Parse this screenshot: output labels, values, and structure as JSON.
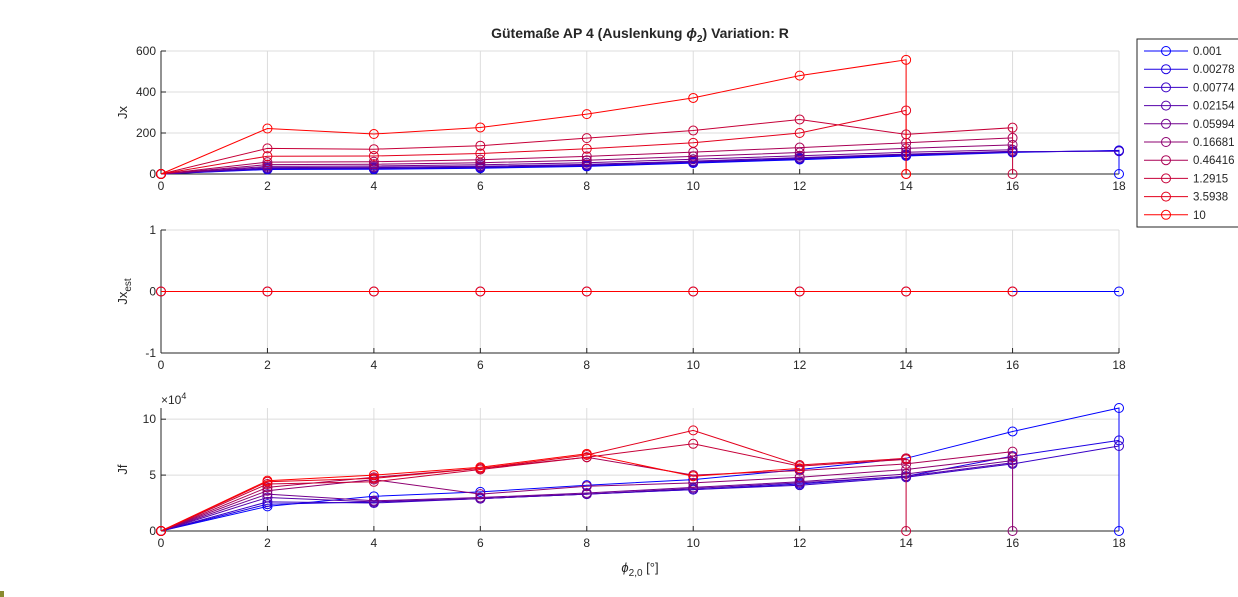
{
  "figure_title": "Gütemaße AP 4 (Auslenkung ϕ2)  Variation: R",
  "title_parts": {
    "pre": "Gütemaße AP 4 (Auslenkung ",
    "sym": "ϕ",
    "sub": "2",
    "post": ")  Variation: R"
  },
  "xlabel_parts": {
    "sym": "ϕ",
    "sub": "2,0",
    "post": " [°]"
  },
  "legend_entries": [
    "0.001",
    "0.00278",
    "0.00774",
    "0.02154",
    "0.05994",
    "0.16681",
    "0.46416",
    "1.2915",
    "3.5938",
    "10"
  ],
  "series_colors": [
    "#0000ff",
    "#1c00e3",
    "#3800c6",
    "#5500aa",
    "#71008e",
    "#8e0071",
    "#aa0055",
    "#c60038",
    "#e3001c",
    "#ff0000"
  ],
  "marker": "open circle",
  "chart_data": [
    {
      "type": "line",
      "ylabel": "Jx",
      "xlim": [
        0,
        18
      ],
      "ylim": [
        0,
        600
      ],
      "yticks": [
        0,
        200,
        400,
        600
      ],
      "xticks": [
        0,
        2,
        4,
        6,
        8,
        10,
        12,
        14,
        16,
        18
      ],
      "grid": true,
      "legend": "outside top-right",
      "series": [
        {
          "name": "0.001",
          "x": [
            0,
            2,
            4,
            6,
            8,
            10,
            12,
            14,
            16,
            18,
            18
          ],
          "y": [
            0,
            22,
            23,
            28,
            37,
            53,
            70,
            88,
            105,
            115,
            0
          ]
        },
        {
          "name": "0.00278",
          "x": [
            0,
            2,
            4,
            6,
            8,
            10,
            12,
            14,
            16,
            18
          ],
          "y": [
            0,
            24,
            26,
            31,
            40,
            56,
            73,
            91,
            107,
            113
          ]
        },
        {
          "name": "0.00774",
          "x": [
            0,
            2,
            4,
            6,
            8,
            10,
            12,
            14,
            16,
            18
          ],
          "y": [
            0,
            27,
            29,
            34,
            43,
            59,
            76,
            94,
            109,
            111
          ]
        },
        {
          "name": "0.02154",
          "x": [
            0,
            2,
            4,
            6,
            8,
            10,
            12,
            14,
            16
          ],
          "y": [
            0,
            31,
            33,
            38,
            47,
            63,
            80,
            97,
            111
          ]
        },
        {
          "name": "0.05994",
          "x": [
            0,
            2,
            4,
            6,
            8,
            10,
            12,
            14,
            16
          ],
          "y": [
            0,
            37,
            39,
            45,
            55,
            72,
            89,
            106,
            118
          ]
        },
        {
          "name": "0.16681",
          "x": [
            0,
            2,
            4,
            6,
            8,
            10,
            12,
            14,
            16
          ],
          "y": [
            0,
            46,
            48,
            55,
            67,
            86,
            105,
            125,
            142
          ]
        },
        {
          "name": "0.46416",
          "x": [
            0,
            2,
            4,
            6,
            8,
            10,
            12,
            14,
            16
          ],
          "y": [
            0,
            58,
            60,
            70,
            86,
            107,
            129,
            152,
            176
          ]
        },
        {
          "name": "1.2915",
          "x": [
            0,
            2,
            4,
            6,
            8,
            10,
            12,
            14,
            16,
            16
          ],
          "y": [
            0,
            125,
            121,
            138,
            175,
            212,
            266,
            193,
            226,
            0
          ]
        },
        {
          "name": "3.5938",
          "x": [
            0,
            2,
            4,
            6,
            8,
            10,
            12,
            14,
            14
          ],
          "y": [
            0,
            87,
            88,
            100,
            123,
            152,
            200,
            310,
            0
          ]
        },
        {
          "name": "10",
          "x": [
            0,
            2,
            4,
            6,
            8,
            10,
            12,
            14,
            14
          ],
          "y": [
            0,
            222,
            195,
            227,
            292,
            371,
            480,
            557,
            0
          ]
        }
      ]
    },
    {
      "type": "line",
      "ylabel": "Jx",
      "ylabel_sub": "est",
      "xlim": [
        0,
        18
      ],
      "ylim": [
        -1,
        1
      ],
      "yticks": [
        -1,
        0,
        1
      ],
      "xticks": [
        0,
        2,
        4,
        6,
        8,
        10,
        12,
        14,
        16,
        18
      ],
      "grid": true,
      "series": [
        {
          "name": "0.001",
          "x": [
            0,
            2,
            4,
            6,
            8,
            10,
            12,
            14,
            16,
            18
          ],
          "y": [
            0,
            0,
            0,
            0,
            0,
            0,
            0,
            0,
            0,
            0
          ]
        },
        {
          "name": "10",
          "x": [
            0,
            2,
            4,
            6,
            8,
            10,
            12,
            14,
            16
          ],
          "y": [
            0,
            0,
            0,
            0,
            0,
            0,
            0,
            0,
            0
          ]
        }
      ]
    },
    {
      "type": "line",
      "ylabel": "Jf",
      "y_exponent": "×10^4",
      "exponent_base": "×10",
      "exponent_power": "4",
      "xlim": [
        0,
        18
      ],
      "ylim": [
        0,
        11
      ],
      "yticks": [
        0,
        5,
        10
      ],
      "xticks": [
        0,
        2,
        4,
        6,
        8,
        10,
        12,
        14,
        16,
        18
      ],
      "grid": true,
      "series": [
        {
          "name": "0.001",
          "x": [
            0,
            2,
            4,
            6,
            8,
            10,
            12,
            14,
            16,
            18,
            18
          ],
          "y": [
            0,
            2.2,
            3.1,
            3.5,
            4.1,
            4.6,
            5.5,
            6.5,
            8.9,
            11.0,
            0
          ]
        },
        {
          "name": "0.00278",
          "x": [
            0,
            2,
            4,
            6,
            8,
            10,
            12,
            14,
            16,
            18
          ],
          "y": [
            0,
            2.4,
            2.6,
            2.9,
            3.3,
            3.7,
            4.2,
            4.9,
            6.7,
            8.1
          ]
        },
        {
          "name": "0.00774",
          "x": [
            0,
            2,
            4,
            6,
            8,
            10,
            12,
            14,
            16,
            18
          ],
          "y": [
            0,
            2.6,
            2.5,
            2.9,
            3.3,
            3.7,
            4.1,
            4.8,
            6.0,
            7.6
          ]
        },
        {
          "name": "0.02154",
          "x": [
            0,
            2,
            4,
            6,
            8,
            10,
            12,
            14,
            16
          ],
          "y": [
            0,
            3.0,
            2.6,
            2.9,
            3.3,
            3.8,
            4.3,
            4.9,
            6.1
          ]
        },
        {
          "name": "0.05994",
          "x": [
            0,
            2,
            4,
            6,
            8,
            10,
            12,
            14,
            16
          ],
          "y": [
            0,
            3.3,
            2.7,
            3.0,
            3.4,
            3.9,
            4.4,
            5.1,
            6.3
          ]
        },
        {
          "name": "0.16681",
          "x": [
            0,
            2,
            4,
            6,
            8,
            10,
            12,
            14,
            16,
            16
          ],
          "y": [
            0,
            3.6,
            4.6,
            3.3,
            4.0,
            4.3,
            4.8,
            5.5,
            6.6,
            0
          ]
        },
        {
          "name": "0.46416",
          "x": [
            0,
            2,
            4,
            6,
            8,
            10,
            12,
            14,
            16
          ],
          "y": [
            0,
            3.9,
            4.8,
            5.6,
            6.6,
            5.0,
            5.4,
            6.0,
            7.1
          ]
        },
        {
          "name": "1.2915",
          "x": [
            0,
            2,
            4,
            6,
            8,
            10,
            12,
            14,
            14
          ],
          "y": [
            0,
            4.2,
            4.4,
            5.5,
            6.6,
            7.8,
            5.8,
            6.4,
            0
          ]
        },
        {
          "name": "3.5938",
          "x": [
            0,
            2,
            4,
            6,
            8,
            10,
            12,
            14
          ],
          "y": [
            0,
            4.4,
            4.7,
            5.6,
            6.8,
            9.0,
            5.9,
            6.5
          ]
        },
        {
          "name": "10",
          "x": [
            0,
            2,
            4,
            6,
            8,
            10,
            12
          ],
          "y": [
            0,
            4.5,
            5.0,
            5.7,
            6.9,
            4.9,
            5.6
          ]
        }
      ]
    }
  ]
}
